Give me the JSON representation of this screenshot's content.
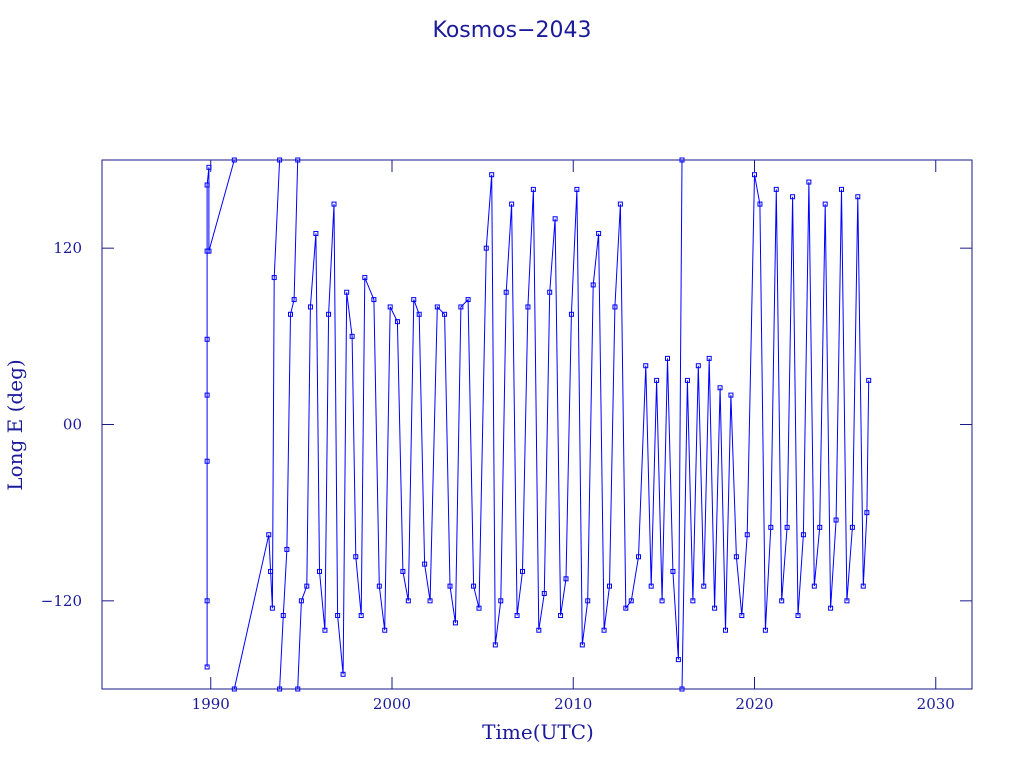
{
  "chart_data": {
    "type": "line",
    "title": "Kosmos−2043",
    "xlabel": "Time(UTC)",
    "ylabel": "Long E (deg)",
    "xlim": [
      1984,
      2032
    ],
    "ylim": [
      -180,
      180
    ],
    "xticks": [
      1990,
      2000,
      2010,
      2020,
      2030
    ],
    "yticks": [
      {
        "value": -120,
        "label": "−120"
      },
      {
        "value": 0,
        "label": "00"
      },
      120
    ],
    "series": [
      {
        "color": "#0000ff",
        "x": [
          1989.8,
          1989.8,
          1989.8,
          1989.8,
          1989.8,
          1989.8,
          1989.8,
          1989.9,
          1989.9,
          1991.3,
          1991.3,
          1991.3,
          1993.2,
          1993.3,
          1993.4,
          1993.5,
          1993.8,
          1993.8,
          1993.8,
          1994.0,
          1994.2,
          1994.4,
          1994.6,
          1994.8,
          1994.8,
          1994.8,
          1995.0,
          1995.3,
          1995.5,
          1995.8,
          1996.0,
          1996.3,
          1996.5,
          1996.8,
          1997.0,
          1997.3,
          1997.5,
          1997.8,
          1998.0,
          1998.3,
          1998.5,
          1999.0,
          1999.3,
          1999.6,
          1999.9,
          2000.3,
          2000.6,
          2000.9,
          2001.2,
          2001.5,
          2001.8,
          2002.1,
          2002.5,
          2002.9,
          2003.2,
          2003.5,
          2003.8,
          2004.2,
          2004.5,
          2004.8,
          2005.2,
          2005.5,
          2005.7,
          2006.0,
          2006.3,
          2006.6,
          2006.9,
          2007.2,
          2007.5,
          2007.8,
          2008.1,
          2008.4,
          2008.7,
          2009.0,
          2009.3,
          2009.6,
          2009.9,
          2010.2,
          2010.5,
          2010.8,
          2011.1,
          2011.4,
          2011.7,
          2012.0,
          2012.3,
          2012.6,
          2012.9,
          2013.2,
          2013.6,
          2014.0,
          2014.3,
          2014.6,
          2014.9,
          2015.2,
          2015.5,
          2015.8,
          2016.0,
          2016.0,
          2016.0,
          2016.3,
          2016.6,
          2016.9,
          2017.2,
          2017.5,
          2017.8,
          2018.1,
          2018.4,
          2018.7,
          2019.0,
          2019.3,
          2019.6,
          2020.0,
          2020.3,
          2020.6,
          2020.9,
          2021.2,
          2021.5,
          2021.8,
          2022.1,
          2022.4,
          2022.7,
          2023.0,
          2023.3,
          2023.6,
          2023.9,
          2024.2,
          2024.5,
          2024.8,
          2025.1,
          2025.4,
          2025.7,
          2026.0,
          2026.2,
          2026.3
        ],
        "values": [
          -165,
          -120,
          -25,
          20,
          58,
          118,
          163,
          175,
          118,
          180,
          null,
          -180,
          -75,
          -100,
          -125,
          100,
          180,
          null,
          -180,
          -130,
          -85,
          75,
          85,
          180,
          null,
          -180,
          -120,
          -110,
          80,
          130,
          -100,
          -140,
          75,
          150,
          -130,
          -170,
          90,
          60,
          -90,
          -130,
          100,
          85,
          -110,
          -140,
          80,
          70,
          -100,
          -120,
          85,
          75,
          -95,
          -120,
          80,
          75,
          -110,
          -135,
          80,
          85,
          -110,
          -125,
          120,
          170,
          -150,
          -120,
          90,
          150,
          -130,
          -100,
          80,
          160,
          -140,
          -115,
          90,
          140,
          -130,
          -105,
          75,
          160,
          -150,
          -120,
          95,
          130,
          -140,
          -110,
          80,
          150,
          -125,
          -120,
          -90,
          40,
          -110,
          30,
          -120,
          45,
          -100,
          -160,
          180,
          null,
          -180,
          30,
          -120,
          40,
          -110,
          45,
          -125,
          25,
          -140,
          20,
          -90,
          -130,
          -75,
          170,
          150,
          -140,
          -70,
          160,
          -120,
          -70,
          155,
          -130,
          -75,
          165,
          -110,
          -70,
          150,
          -125,
          -65,
          160,
          -120,
          -70,
          155,
          -110,
          -60,
          30
        ]
      }
    ]
  }
}
